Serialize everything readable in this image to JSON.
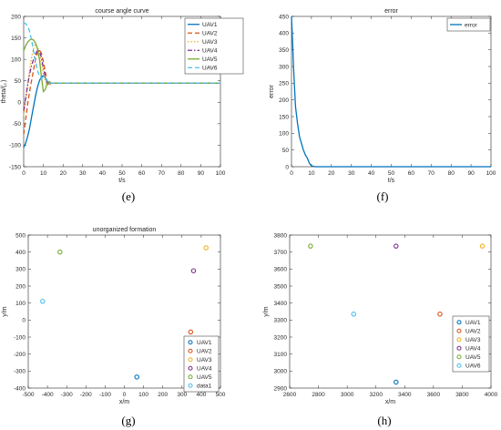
{
  "panel_letters": [
    "(e)",
    "(f)",
    "(g)",
    "(h)"
  ],
  "chart_data": [
    {
      "type": "line",
      "title": "course angle curve",
      "xlabel": "t/s",
      "ylabel": "theta/(。)",
      "xlim": [
        0,
        100
      ],
      "ylim": [
        -150,
        200
      ],
      "xticks": [
        0,
        10,
        20,
        30,
        40,
        50,
        60,
        70,
        80,
        90,
        100
      ],
      "yticks": [
        -150,
        -100,
        -50,
        0,
        50,
        100,
        150,
        200
      ],
      "grid": false,
      "legend_position": "top-right",
      "series": [
        {
          "name": "UAV1",
          "color": "#0072BD",
          "dash": "solid",
          "x": [
            0,
            1,
            2,
            3,
            4,
            5,
            6,
            7,
            8,
            9,
            10,
            11,
            12,
            14,
            100
          ],
          "y": [
            -105,
            -95,
            -80,
            -60,
            -35,
            -10,
            15,
            35,
            50,
            60,
            62,
            57,
            48,
            45,
            45
          ]
        },
        {
          "name": "UAV2",
          "color": "#D95319",
          "dash": "dashed",
          "x": [
            0,
            1,
            2,
            3,
            4,
            5,
            6,
            7,
            8,
            9,
            10,
            11,
            12,
            13,
            14,
            100
          ],
          "y": [
            -75,
            -40,
            -5,
            25,
            50,
            75,
            100,
            115,
            122,
            115,
            95,
            70,
            48,
            40,
            45,
            45
          ]
        },
        {
          "name": "UAV3",
          "color": "#EDB120",
          "dash": "dotted",
          "x": [
            0,
            1,
            2,
            3,
            4,
            5,
            6,
            7,
            8,
            9,
            10,
            11,
            12,
            13,
            14,
            100
          ],
          "y": [
            -30,
            5,
            40,
            75,
            105,
            125,
            135,
            130,
            115,
            90,
            65,
            48,
            40,
            42,
            45,
            45
          ]
        },
        {
          "name": "UAV4",
          "color": "#7E2F8E",
          "dash": "dashdot",
          "x": [
            0,
            1,
            2,
            3,
            4,
            5,
            6,
            7,
            8,
            9,
            10,
            11,
            12,
            13,
            14,
            100
          ],
          "y": [
            -20,
            10,
            40,
            65,
            85,
            100,
            112,
            122,
            120,
            105,
            80,
            58,
            45,
            42,
            45,
            45
          ]
        },
        {
          "name": "UAV5",
          "color": "#77AC30",
          "dash": "solid",
          "x": [
            0,
            1,
            2,
            3,
            4,
            5,
            6,
            7,
            8,
            9,
            10,
            11,
            12,
            13,
            14,
            100
          ],
          "y": [
            120,
            132,
            140,
            145,
            147,
            145,
            138,
            125,
            100,
            60,
            25,
            30,
            45,
            48,
            45,
            45
          ]
        },
        {
          "name": "UAV6",
          "color": "#4DBEEE",
          "dash": "dashed",
          "x": [
            0,
            1,
            2,
            3,
            4,
            5,
            6,
            7,
            8,
            9,
            10,
            11,
            12,
            13,
            14,
            100
          ],
          "y": [
            185,
            183,
            178,
            165,
            145,
            120,
            95,
            75,
            60,
            55,
            60,
            58,
            50,
            45,
            45,
            45
          ]
        }
      ]
    },
    {
      "type": "line",
      "title": "error",
      "xlabel": "t/s",
      "ylabel": "error",
      "xlim": [
        0,
        100
      ],
      "ylim": [
        0,
        450
      ],
      "xticks": [
        0,
        10,
        20,
        30,
        40,
        50,
        60,
        70,
        80,
        90,
        100
      ],
      "yticks": [
        0,
        50,
        100,
        150,
        200,
        250,
        300,
        350,
        400,
        450
      ],
      "grid": false,
      "legend_position": "top-right",
      "series": [
        {
          "name": "error",
          "color": "#0072BD",
          "dash": "solid",
          "x": [
            0,
            0.5,
            1,
            1.5,
            2,
            3,
            4,
            5,
            6,
            7,
            8,
            9,
            10,
            11,
            12,
            100
          ],
          "y": [
            450,
            380,
            300,
            240,
            180,
            130,
            90,
            70,
            50,
            35,
            25,
            10,
            3,
            1,
            0,
            0
          ]
        }
      ]
    },
    {
      "type": "scatter",
      "title": "unorganized formation",
      "xlabel": "x/m",
      "ylabel": "y/m",
      "xlim": [
        -500,
        500
      ],
      "ylim": [
        -400,
        500
      ],
      "xticks": [
        -500,
        -400,
        -300,
        -200,
        -100,
        0,
        100,
        200,
        300,
        400,
        500
      ],
      "yticks": [
        -400,
        -300,
        -200,
        -100,
        0,
        100,
        200,
        300,
        400,
        500
      ],
      "grid": false,
      "legend_position": "bottom-right",
      "series": [
        {
          "name": "UAV1",
          "color": "#0072BD",
          "x": [
            65
          ],
          "y": [
            -335
          ]
        },
        {
          "name": "UAV2",
          "color": "#D95319",
          "x": [
            345
          ],
          "y": [
            -70
          ]
        },
        {
          "name": "UAV3",
          "color": "#EDB120",
          "x": [
            425
          ],
          "y": [
            425
          ]
        },
        {
          "name": "UAV4",
          "color": "#7E2F8E",
          "x": [
            360
          ],
          "y": [
            290
          ]
        },
        {
          "name": "UAV5",
          "color": "#77AC30",
          "x": [
            -335
          ],
          "y": [
            400
          ]
        },
        {
          "name": "data1",
          "color": "#4DBEEE",
          "x": [
            -425
          ],
          "y": [
            110
          ]
        }
      ]
    },
    {
      "type": "scatter",
      "title": "",
      "xlabel": "x/m",
      "ylabel": "y/m",
      "xlim": [
        2600,
        4000
      ],
      "ylim": [
        2900,
        3800
      ],
      "xticks": [
        2600,
        2800,
        3000,
        3200,
        3400,
        3600,
        3800,
        4000
      ],
      "yticks": [
        2900,
        3000,
        3100,
        3200,
        3300,
        3400,
        3500,
        3600,
        3700,
        3800
      ],
      "grid": false,
      "legend_position": "bottom-right",
      "series": [
        {
          "name": "UAV1",
          "color": "#0072BD",
          "x": [
            3340
          ],
          "y": [
            2935
          ]
        },
        {
          "name": "UAV2",
          "color": "#D95319",
          "x": [
            3645
          ],
          "y": [
            3335
          ]
        },
        {
          "name": "UAV3",
          "color": "#EDB120",
          "x": [
            3940
          ],
          "y": [
            3735
          ]
        },
        {
          "name": "UAV4",
          "color": "#7E2F8E",
          "x": [
            3340
          ],
          "y": [
            3735
          ]
        },
        {
          "name": "UAV5",
          "color": "#77AC30",
          "x": [
            2745
          ],
          "y": [
            3735
          ]
        },
        {
          "name": "UAV6",
          "color": "#4DBEEE",
          "x": [
            3045
          ],
          "y": [
            3335
          ]
        }
      ]
    }
  ]
}
